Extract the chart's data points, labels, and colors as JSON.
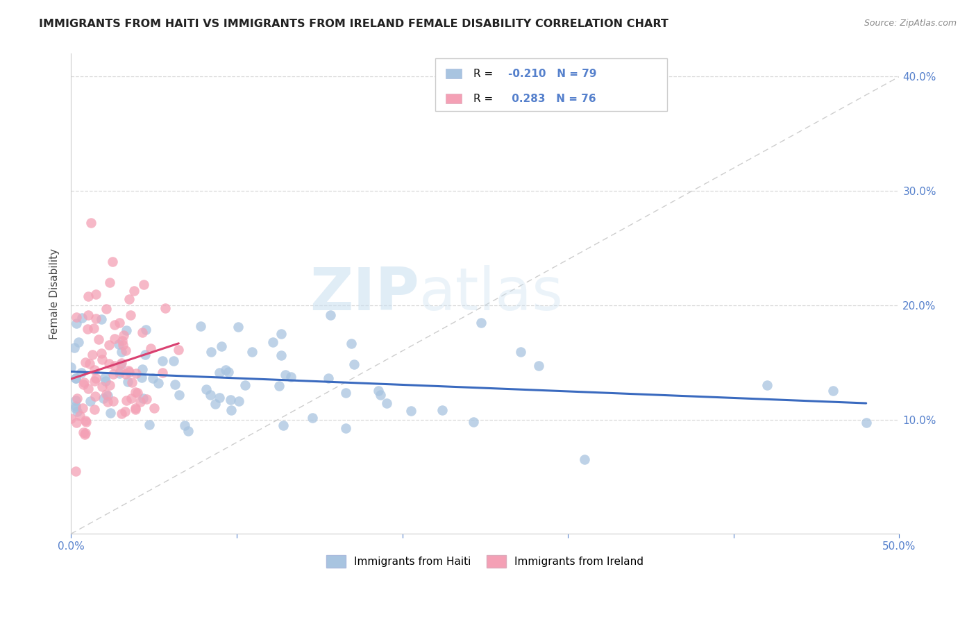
{
  "title": "IMMIGRANTS FROM HAITI VS IMMIGRANTS FROM IRELAND FEMALE DISABILITY CORRELATION CHART",
  "source": "Source: ZipAtlas.com",
  "ylabel": "Female Disability",
  "xlim": [
    0.0,
    0.5
  ],
  "ylim": [
    0.0,
    0.42
  ],
  "xticks": [
    0.0,
    0.1,
    0.2,
    0.3,
    0.4,
    0.5
  ],
  "yticks": [
    0.1,
    0.2,
    0.3,
    0.4
  ],
  "xticklabels": [
    "0.0%",
    "",
    "",
    "",
    "",
    "50.0%"
  ],
  "yticklabels": [
    "10.0%",
    "20.0%",
    "30.0%",
    "40.0%"
  ],
  "haiti_color": "#a8c4e0",
  "ireland_color": "#f4a0b5",
  "haiti_R": -0.21,
  "haiti_N": 79,
  "ireland_R": 0.283,
  "ireland_N": 76,
  "haiti_line_color": "#3a6abf",
  "ireland_line_color": "#d94070",
  "trend_dash_color": "#c8c8c8",
  "watermark": "ZIPatlas",
  "legend_label_haiti": "Immigrants from Haiti",
  "legend_label_ireland": "Immigrants from Ireland",
  "background_color": "#ffffff",
  "grid_color": "#d8d8d8",
  "tick_color": "#5580cc",
  "title_color": "#222222",
  "source_color": "#888888"
}
